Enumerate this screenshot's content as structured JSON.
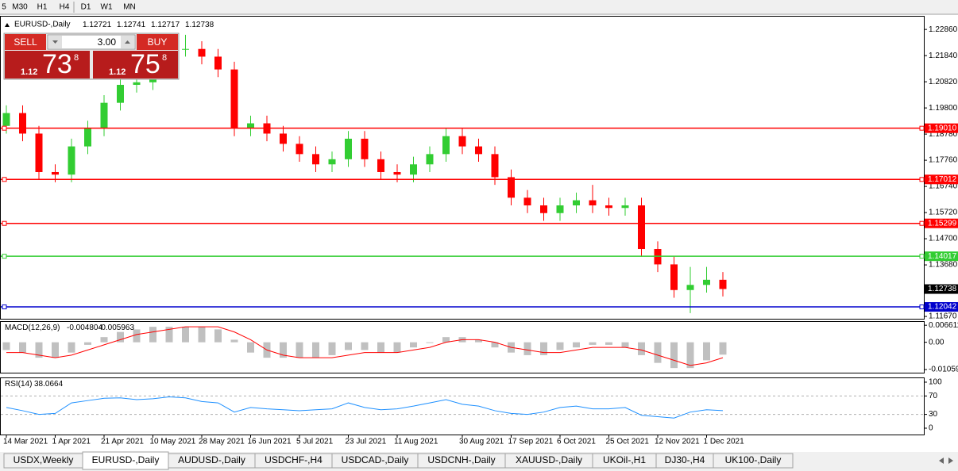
{
  "toolbar": [
    "5",
    "M30",
    "H1",
    "H4",
    "D1",
    "W1",
    "MN"
  ],
  "trade_panel": {
    "sell": "SELL",
    "buy": "BUY",
    "volume": "3.00",
    "bid": {
      "big": "1.12",
      "pips": "73",
      "point": "8"
    },
    "ask": {
      "big": "1.12",
      "pips": "75",
      "point": "8"
    }
  },
  "chart_data": {
    "type": "candlestick",
    "title": "EURUSD-,Daily",
    "quote": [
      1.12721,
      1.12741,
      1.12717,
      1.12738
    ],
    "categories": [
      "14 Mar 2021",
      null,
      null,
      "1 Apr 2021",
      null,
      null,
      "21 Apr 2021",
      null,
      null,
      "10 May 2021",
      null,
      null,
      "28 May 2021",
      null,
      null,
      "16 Jun 2021",
      null,
      null,
      "5 Jul 2021",
      null,
      null,
      "23 Jul 2021",
      null,
      null,
      "11 Aug 2021",
      null,
      null,
      null,
      "30 Aug 2021",
      null,
      null,
      "17 Sep 2021",
      null,
      null,
      "6 Oct 2021",
      null,
      null,
      "25 Oct 2021",
      null,
      null,
      "12 Nov 2021",
      null,
      null,
      "1 Dec 2021",
      null
    ],
    "open": [
      1.191,
      1.196,
      1.188,
      1.173,
      1.172,
      1.183,
      1.19,
      1.2,
      1.207,
      1.208,
      1.212,
      1.221,
      1.221,
      1.218,
      1.213,
      1.19,
      1.192,
      1.188,
      1.184,
      1.18,
      1.176,
      1.178,
      1.186,
      1.178,
      1.173,
      1.172,
      1.176,
      1.18,
      1.187,
      1.183,
      1.18,
      1.171,
      1.163,
      1.16,
      1.157,
      1.16,
      1.162,
      1.16,
      1.159,
      1.16,
      1.143,
      1.137,
      1.127,
      1.129,
      1.131
    ],
    "high": [
      1.199,
      1.199,
      1.191,
      1.176,
      1.186,
      1.193,
      1.203,
      1.21,
      1.211,
      1.215,
      1.224,
      1.2265,
      1.224,
      1.221,
      1.216,
      1.195,
      1.195,
      1.191,
      1.187,
      1.183,
      1.181,
      1.189,
      1.189,
      1.181,
      1.176,
      1.179,
      1.183,
      1.19,
      1.19,
      1.186,
      1.183,
      1.174,
      1.166,
      1.163,
      1.163,
      1.165,
      1.168,
      1.163,
      1.163,
      1.163,
      1.146,
      1.14,
      1.136,
      1.136,
      1.134
    ],
    "low": [
      1.188,
      1.185,
      1.17,
      1.169,
      1.169,
      1.18,
      1.187,
      1.197,
      1.204,
      1.205,
      1.209,
      1.218,
      1.215,
      1.21,
      1.187,
      1.187,
      1.185,
      1.181,
      1.177,
      1.173,
      1.173,
      1.175,
      1.175,
      1.17,
      1.169,
      1.169,
      1.173,
      1.177,
      1.18,
      1.177,
      1.168,
      1.16,
      1.157,
      1.154,
      1.154,
      1.157,
      1.157,
      1.156,
      1.156,
      1.14,
      1.134,
      1.124,
      1.118,
      1.126,
      1.1245
    ],
    "close": [
      1.196,
      1.188,
      1.173,
      1.172,
      1.183,
      1.19,
      1.2,
      1.207,
      1.208,
      1.212,
      1.221,
      1.221,
      1.218,
      1.213,
      1.19,
      1.192,
      1.188,
      1.184,
      1.18,
      1.176,
      1.178,
      1.186,
      1.178,
      1.173,
      1.172,
      1.176,
      1.18,
      1.187,
      1.183,
      1.18,
      1.171,
      1.163,
      1.16,
      1.157,
      1.16,
      1.162,
      1.16,
      1.159,
      1.16,
      1.143,
      1.137,
      1.127,
      1.129,
      1.131,
      1.1274
    ],
    "up_color": "#32cd32",
    "down_color": "#ff0000",
    "ylim": [
      1.1158,
      1.2339
    ],
    "yticks": [
      {
        "value": 1.2286,
        "label": "1.22860"
      },
      {
        "value": 1.2184,
        "label": "1.21840"
      },
      {
        "value": 1.2082,
        "label": "1.20820"
      },
      {
        "value": 1.198,
        "label": "1.19800"
      },
      {
        "value": 1.1878,
        "label": "1.18780"
      },
      {
        "value": 1.1776,
        "label": "1.17760"
      },
      {
        "value": 1.1674,
        "label": "1.16740"
      },
      {
        "value": 1.1572,
        "label": "1.15720"
      },
      {
        "value": 1.147,
        "label": "1.14700"
      },
      {
        "value": 1.1368,
        "label": "1.13680"
      },
      {
        "value": 1.1167,
        "label": "1.11670"
      }
    ],
    "levels": [
      {
        "value": 1.1901,
        "label": "1.19010",
        "color": "#ff0000"
      },
      {
        "value": 1.17012,
        "label": "1.17012",
        "color": "#ff0000"
      },
      {
        "value": 1.15299,
        "label": "1.15299",
        "color": "#ff0000"
      },
      {
        "value": 1.14017,
        "label": "1.14017",
        "color": "#32cd32"
      },
      {
        "value": 1.12042,
        "label": "1.12042",
        "color": "#0000cd"
      }
    ],
    "current_price": {
      "value": 1.12738,
      "label": "1.12738"
    },
    "macd": {
      "name": "MACD(12,26,9)",
      "readout": [
        -0.004804,
        -0.005963
      ],
      "values": [
        -0.003,
        -0.004,
        -0.006,
        -0.006,
        -0.004,
        -0.001,
        0.002,
        0.004,
        0.005,
        0.006,
        0.006,
        0.006,
        0.006,
        0.005,
        0.001,
        -0.004,
        -0.006,
        -0.006,
        -0.006,
        -0.006,
        -0.005,
        -0.003,
        -0.003,
        -0.004,
        -0.004,
        -0.002,
        0,
        0.002,
        0.002,
        0.001,
        -0.002,
        -0.004,
        -0.005,
        -0.005,
        -0.003,
        -0.002,
        -0.001,
        -0.001,
        -0.002,
        -0.005,
        -0.008,
        -0.01,
        -0.01,
        -0.007,
        -0.0048
      ],
      "signal": [
        -0.004,
        -0.004,
        -0.005,
        -0.006,
        -0.005,
        -0.003,
        -0.001,
        0.001,
        0.003,
        0.004,
        0.005,
        0.006,
        0.006,
        0.006,
        0.004,
        0.001,
        -0.003,
        -0.005,
        -0.006,
        -0.006,
        -0.006,
        -0.005,
        -0.004,
        -0.004,
        -0.004,
        -0.003,
        -0.002,
        0,
        0.001,
        0.001,
        0,
        -0.002,
        -0.003,
        -0.004,
        -0.004,
        -0.003,
        -0.002,
        -0.002,
        -0.002,
        -0.003,
        -0.005,
        -0.007,
        -0.009,
        -0.008,
        -0.006
      ],
      "bar_color": "#c0c0c0",
      "signal_color": "#ff0000",
      "ylim": [
        -0.0118,
        0.0082
      ],
      "yticks": [
        0.006611,
        {
          "value": 0,
          "label": "0.00"
        },
        -0.010599
      ]
    },
    "rsi": {
      "name": "RSI(14)",
      "readout": 38.0664,
      "values": [
        45,
        38,
        30,
        32,
        55,
        60,
        65,
        66,
        62,
        64,
        68,
        66,
        58,
        55,
        35,
        45,
        42,
        40,
        38,
        40,
        42,
        55,
        45,
        40,
        42,
        48,
        55,
        62,
        52,
        48,
        38,
        32,
        30,
        35,
        45,
        48,
        42,
        42,
        45,
        28,
        25,
        22,
        35,
        40,
        38.0664
      ],
      "color": "#1e90ff",
      "ylim": [
        -13.8,
        110.3
      ],
      "yticks": [
        100,
        70,
        30,
        0
      ]
    }
  },
  "tabs": [
    "USDX,Weekly",
    "EURUSD-,Daily",
    "AUDUSD-,Daily",
    "USDCHF-,H4",
    "USDCAD-,Daily",
    "USDCNH-,Daily",
    "XAUUSD-,Daily",
    "UKOil-,H1",
    "DJ30-,H4",
    "UK100-,Daily"
  ]
}
